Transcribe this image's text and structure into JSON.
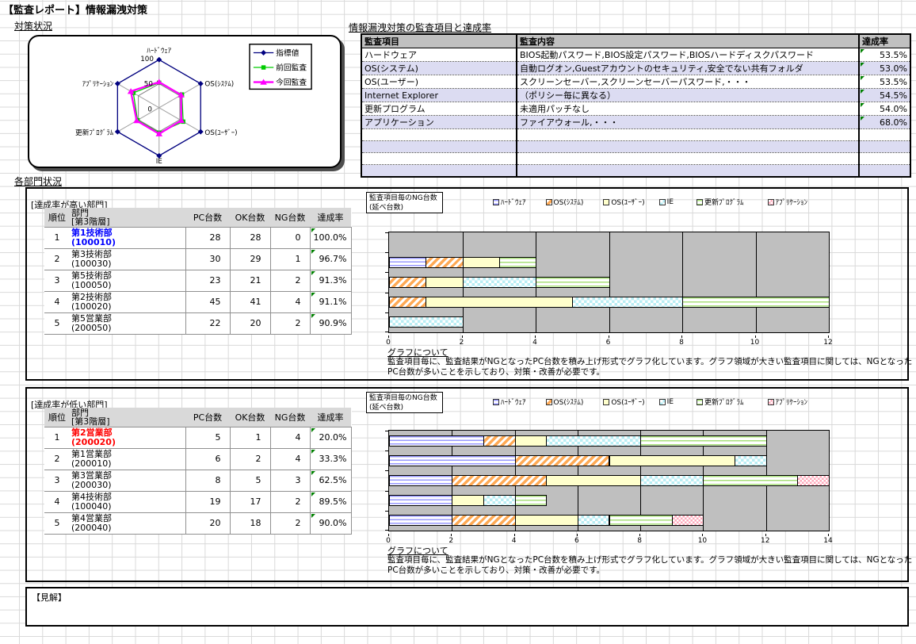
{
  "title": "【監査レポート】情報漏洩対策",
  "headings": {
    "taisaku": "対策状況",
    "audit": "情報漏洩対策の監査項目と達成率",
    "departments": "各部門状況",
    "kenkai": "【見解】",
    "graph_note_heading": "グラフについて"
  },
  "graph_note_text": "監査項目毎に、監査結果がNGとなったPC台数を積み上げ形式でグラフ化しています。グラフ領域が大きい監査項目に関しては、NGとなったPC台数が多いことを示しており、対策・改善が必要です。",
  "ng_chart_title_line1": "監査項目毎のNG台数",
  "ng_chart_title_line2": "(延べ台数)",
  "audit_table": {
    "headers": [
      "監査項目",
      "監査内容",
      "達成率"
    ],
    "rows": [
      {
        "item": "ハードウェア",
        "content": "BIOS起動パスワード,BIOS設定パスワード,BIOSハードディスクパスワード",
        "rate": "53.5%"
      },
      {
        "item": "OS(システム)",
        "content": "自動ログオン,Guestアカウントのセキュリティ,安全でない共有フォルダ",
        "rate": "53.0%"
      },
      {
        "item": "OS(ユーザー)",
        "content": "スクリーンセーバー,スクリーンセーバーパスワード,・・・",
        "rate": "53.5%"
      },
      {
        "item": "Internet Explorer",
        "content": "（ポリシー毎に異なる）",
        "rate": "54.5%"
      },
      {
        "item": "更新プログラム",
        "content": "未適用パッチなし",
        "rate": "54.0%"
      },
      {
        "item": "アプリケーション",
        "content": "ファイアウォール,・・・",
        "rate": "68.0%"
      }
    ],
    "empty_rows": 4
  },
  "dept_table_headers": {
    "rank": "順位",
    "dept_line1": "部門",
    "dept_line2": "[第3階層]",
    "pc": "PC台数",
    "ok": "OK台数",
    "ng": "NG台数",
    "rate": "達成率"
  },
  "high_section": {
    "label": "[達成率が高い部門]",
    "rows": [
      {
        "rank": "1",
        "name": "第1技術部",
        "code": "(100010)",
        "pc": "28",
        "ok": "28",
        "ng": "0",
        "rate": "100.0%",
        "highlight": "blue"
      },
      {
        "rank": "2",
        "name": "第3技術部",
        "code": "(100030)",
        "pc": "30",
        "ok": "29",
        "ng": "1",
        "rate": "96.7%"
      },
      {
        "rank": "3",
        "name": "第5技術部",
        "code": "(100050)",
        "pc": "23",
        "ok": "21",
        "ng": "2",
        "rate": "91.3%"
      },
      {
        "rank": "4",
        "name": "第2技術部",
        "code": "(100020)",
        "pc": "45",
        "ok": "41",
        "ng": "4",
        "rate": "91.1%"
      },
      {
        "rank": "5",
        "name": "第5営業部",
        "code": "(200050)",
        "pc": "22",
        "ok": "20",
        "ng": "2",
        "rate": "90.9%"
      }
    ]
  },
  "low_section": {
    "label": "[達成率が低い部門]",
    "rows": [
      {
        "rank": "1",
        "name": "第2営業部",
        "code": "(200020)",
        "pc": "5",
        "ok": "1",
        "ng": "4",
        "rate": "20.0%",
        "highlight": "red"
      },
      {
        "rank": "2",
        "name": "第1営業部",
        "code": "(200010)",
        "pc": "6",
        "ok": "2",
        "ng": "4",
        "rate": "33.3%"
      },
      {
        "rank": "3",
        "name": "第3営業部",
        "code": "(200030)",
        "pc": "8",
        "ok": "5",
        "ng": "3",
        "rate": "62.5%"
      },
      {
        "rank": "4",
        "name": "第4技術部",
        "code": "(100040)",
        "pc": "19",
        "ok": "17",
        "ng": "2",
        "rate": "89.5%"
      },
      {
        "rank": "5",
        "name": "第4営業部",
        "code": "(200040)",
        "pc": "20",
        "ok": "18",
        "ng": "2",
        "rate": "90.0%"
      }
    ]
  },
  "radar_scale_labels": [
    "100",
    "50",
    "0"
  ],
  "colors": {
    "accent_blue": "#0000FF",
    "accent_red": "#FF0000",
    "header_gray": "#C0C0C0",
    "subheader_gray": "#D9D9D9",
    "stripe_lavender": "#DCDCF2",
    "plot_bg": "#BFBFBF",
    "indicator_green": "#008000",
    "series_navy": "#000080",
    "series_green": "#00CC00",
    "series_magenta": "#FF00FF"
  },
  "chart_data": [
    {
      "type": "radar",
      "title": "対策状況",
      "axes": [
        "ﾊｰﾄﾞｳｪｱ",
        "OS(ｼｽﾃﾑ)",
        "OS(ﾕｰｻﾞｰ)",
        "IE",
        "更新ﾌﾟﾛｸﾞﾗﾑ",
        "ｱﾌﾟﾘｹｰｼｮﾝ"
      ],
      "range": [
        0,
        100
      ],
      "rings": [
        50,
        100
      ],
      "legend_position": "right",
      "series": [
        {
          "name": "指標値",
          "color": "#000080",
          "marker": "diamond",
          "width": 1.3,
          "values": [
            100,
            100,
            100,
            100,
            100,
            100
          ]
        },
        {
          "name": "前回監査",
          "color": "#00CC00",
          "marker": "square",
          "width": 1.3,
          "values": [
            52,
            55,
            58,
            52,
            52,
            62
          ]
        },
        {
          "name": "今回監査",
          "color": "#FF00FF",
          "marker": "triangle",
          "width": 2.4,
          "values": [
            53.5,
            53,
            53.5,
            54.5,
            54,
            68
          ]
        }
      ]
    },
    {
      "type": "bar",
      "stacked": true,
      "orientation": "horizontal",
      "title": "監査項目毎のNG台数(延べ台数)",
      "categories": [
        "第1技術部",
        "第3技術部",
        "第5技術部",
        "第2技術部",
        "第5営業部"
      ],
      "xlim": [
        0,
        12
      ],
      "xticks": [
        0,
        2,
        4,
        6,
        8,
        10,
        12
      ],
      "grid": true,
      "series": [
        {
          "name": "ハードウェア",
          "legend_label": "ﾊｰﾄﾞｳｪｱ",
          "pattern": "hw",
          "values": [
            0,
            1,
            0,
            0,
            0
          ]
        },
        {
          "name": "OS(システム)",
          "legend_label": "OS(ｼｽﾃﾑ)",
          "pattern": "ossys",
          "values": [
            0,
            1,
            1,
            1,
            0
          ]
        },
        {
          "name": "OS(ユーザー)",
          "legend_label": "OS(ﾕｰｻﾞｰ)",
          "pattern": "osuser",
          "values": [
            0,
            1,
            1,
            4,
            0
          ]
        },
        {
          "name": "IE",
          "legend_label": "IE",
          "pattern": "ie",
          "values": [
            0,
            0,
            2,
            3,
            2
          ]
        },
        {
          "name": "更新プログラム",
          "legend_label": "更新ﾌﾟﾛｸﾞﾗﾑ",
          "pattern": "upd",
          "values": [
            0,
            1,
            2,
            4,
            0
          ]
        },
        {
          "name": "アプリケーション",
          "legend_label": "ｱﾌﾟﾘｹｰｼｮﾝ",
          "pattern": "app",
          "values": [
            0,
            0,
            0,
            0,
            0
          ]
        }
      ]
    },
    {
      "type": "bar",
      "stacked": true,
      "orientation": "horizontal",
      "title": "監査項目毎のNG台数(延べ台数)",
      "categories": [
        "第2営業部",
        "第1営業部",
        "第3営業部",
        "第4技術部",
        "第4営業部"
      ],
      "xlim": [
        0,
        14
      ],
      "xticks": [
        0,
        2,
        4,
        6,
        8,
        10,
        12,
        14
      ],
      "grid": true,
      "series": [
        {
          "name": "ハードウェア",
          "legend_label": "ﾊｰﾄﾞｳｪｱ",
          "pattern": "hw",
          "values": [
            3,
            4,
            2,
            2,
            2
          ]
        },
        {
          "name": "OS(システム)",
          "legend_label": "OS(ｼｽﾃﾑ)",
          "pattern": "ossys",
          "values": [
            1,
            3,
            3,
            0,
            2
          ]
        },
        {
          "name": "OS(ユーザー)",
          "legend_label": "OS(ﾕｰｻﾞｰ)",
          "pattern": "osuser",
          "values": [
            1,
            4,
            3,
            1,
            2
          ]
        },
        {
          "name": "IE",
          "legend_label": "IE",
          "pattern": "ie",
          "values": [
            3,
            1,
            2,
            1,
            1
          ]
        },
        {
          "name": "更新プログラム",
          "legend_label": "更新ﾌﾟﾛｸﾞﾗﾑ",
          "pattern": "upd",
          "values": [
            4,
            0,
            3,
            1,
            2
          ]
        },
        {
          "name": "アプリケーション",
          "legend_label": "ｱﾌﾟﾘｹｰｼｮﾝ",
          "pattern": "app",
          "values": [
            0,
            0,
            1,
            0,
            1
          ]
        }
      ]
    }
  ]
}
